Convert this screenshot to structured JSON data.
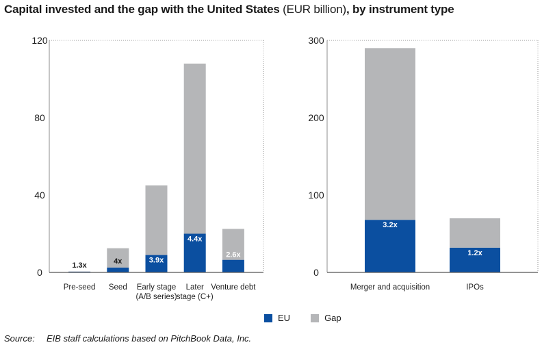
{
  "title": {
    "part1": "Capital invested and the gap with the United States",
    "part2": " (EUR billion)",
    "part3": ", by instrument type"
  },
  "colors": {
    "eu": "#0b4fa0",
    "gap": "#b5b6b8",
    "frame": "#9a9a9a"
  },
  "legend": [
    {
      "key": "eu",
      "label": "EU"
    },
    {
      "key": "gap",
      "label": "Gap"
    }
  ],
  "source": {
    "label": "Source:",
    "text": "EIB staff calculations based on PitchBook Data, Inc."
  },
  "chart_data": [
    {
      "type": "bar",
      "stacked": true,
      "ylim": [
        0,
        120
      ],
      "yticks": [
        0,
        40,
        80,
        120
      ],
      "grid": false,
      "categories": [
        [
          "Pre-seed"
        ],
        [
          "Seed"
        ],
        [
          "Early stage",
          "(A/B series)"
        ],
        [
          "Later",
          "stage (C+)"
        ],
        [
          "Venture debt"
        ]
      ],
      "series": [
        {
          "name": "EU",
          "values": [
            0.4,
            2.5,
            9,
            20,
            6.5
          ]
        },
        {
          "name": "Gap",
          "values": [
            0.1,
            10,
            36,
            88,
            16
          ]
        }
      ],
      "annotations": [
        "1.3x",
        "4x",
        "3.9x",
        "4.4x",
        "2.6x"
      ]
    },
    {
      "type": "bar",
      "stacked": true,
      "ylim": [
        0,
        300
      ],
      "yticks": [
        0,
        100,
        200,
        300
      ],
      "grid": false,
      "categories": [
        [
          "Merger and acquisition"
        ],
        [
          "IPOs"
        ]
      ],
      "series": [
        {
          "name": "EU",
          "values": [
            68,
            32
          ]
        },
        {
          "name": "Gap",
          "values": [
            222,
            38
          ]
        }
      ],
      "annotations": [
        "3.2x",
        "1.2x"
      ]
    }
  ]
}
